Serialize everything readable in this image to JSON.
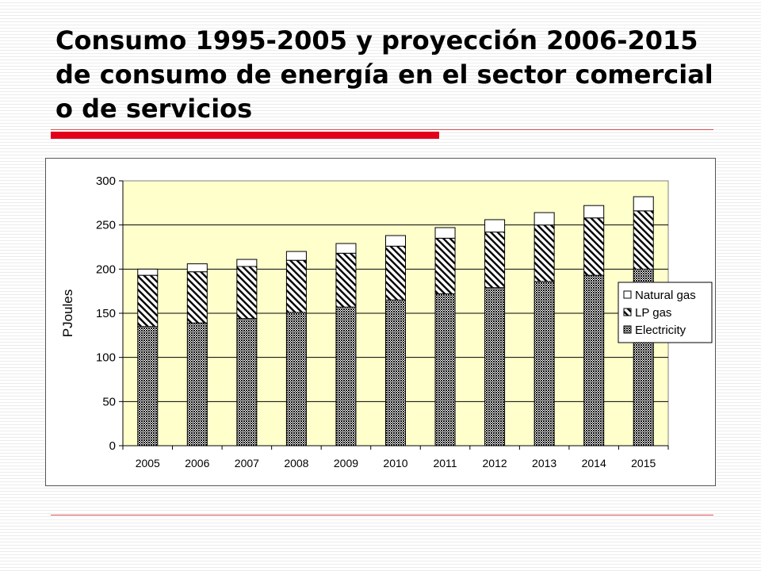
{
  "slide": {
    "title": "Consumo 1995-2005 y proyección 2006-2015 de consumo de energía en el sector comercial o de servicios"
  },
  "colors": {
    "accent": "#e2001a",
    "plot_background": "#ffffcc"
  },
  "chart_data": {
    "type": "bar",
    "stacked": true,
    "title": "",
    "xlabel": "",
    "ylabel": "PJoules",
    "ylim": [
      0,
      300
    ],
    "yticks": [
      0,
      50,
      100,
      150,
      200,
      250,
      300
    ],
    "grid": true,
    "legend_position": "right",
    "categories": [
      "2005",
      "2006",
      "2007",
      "2008",
      "2009",
      "2010",
      "2011",
      "2012",
      "2013",
      "2014",
      "2015"
    ],
    "series": [
      {
        "name": "Electricity",
        "pattern": "dots",
        "values": [
          135,
          139,
          144,
          151,
          157,
          165,
          172,
          179,
          186,
          193,
          200
        ]
      },
      {
        "name": "LP gas",
        "pattern": "diagonal",
        "values": [
          58,
          58,
          59,
          59,
          61,
          61,
          63,
          63,
          64,
          65,
          66
        ]
      },
      {
        "name": "Natural gas",
        "pattern": "none",
        "values": [
          7,
          9,
          8,
          10,
          11,
          12,
          12,
          14,
          14,
          14,
          16
        ]
      }
    ],
    "legend_order": [
      "Natural gas",
      "LP gas",
      "Electricity"
    ]
  }
}
